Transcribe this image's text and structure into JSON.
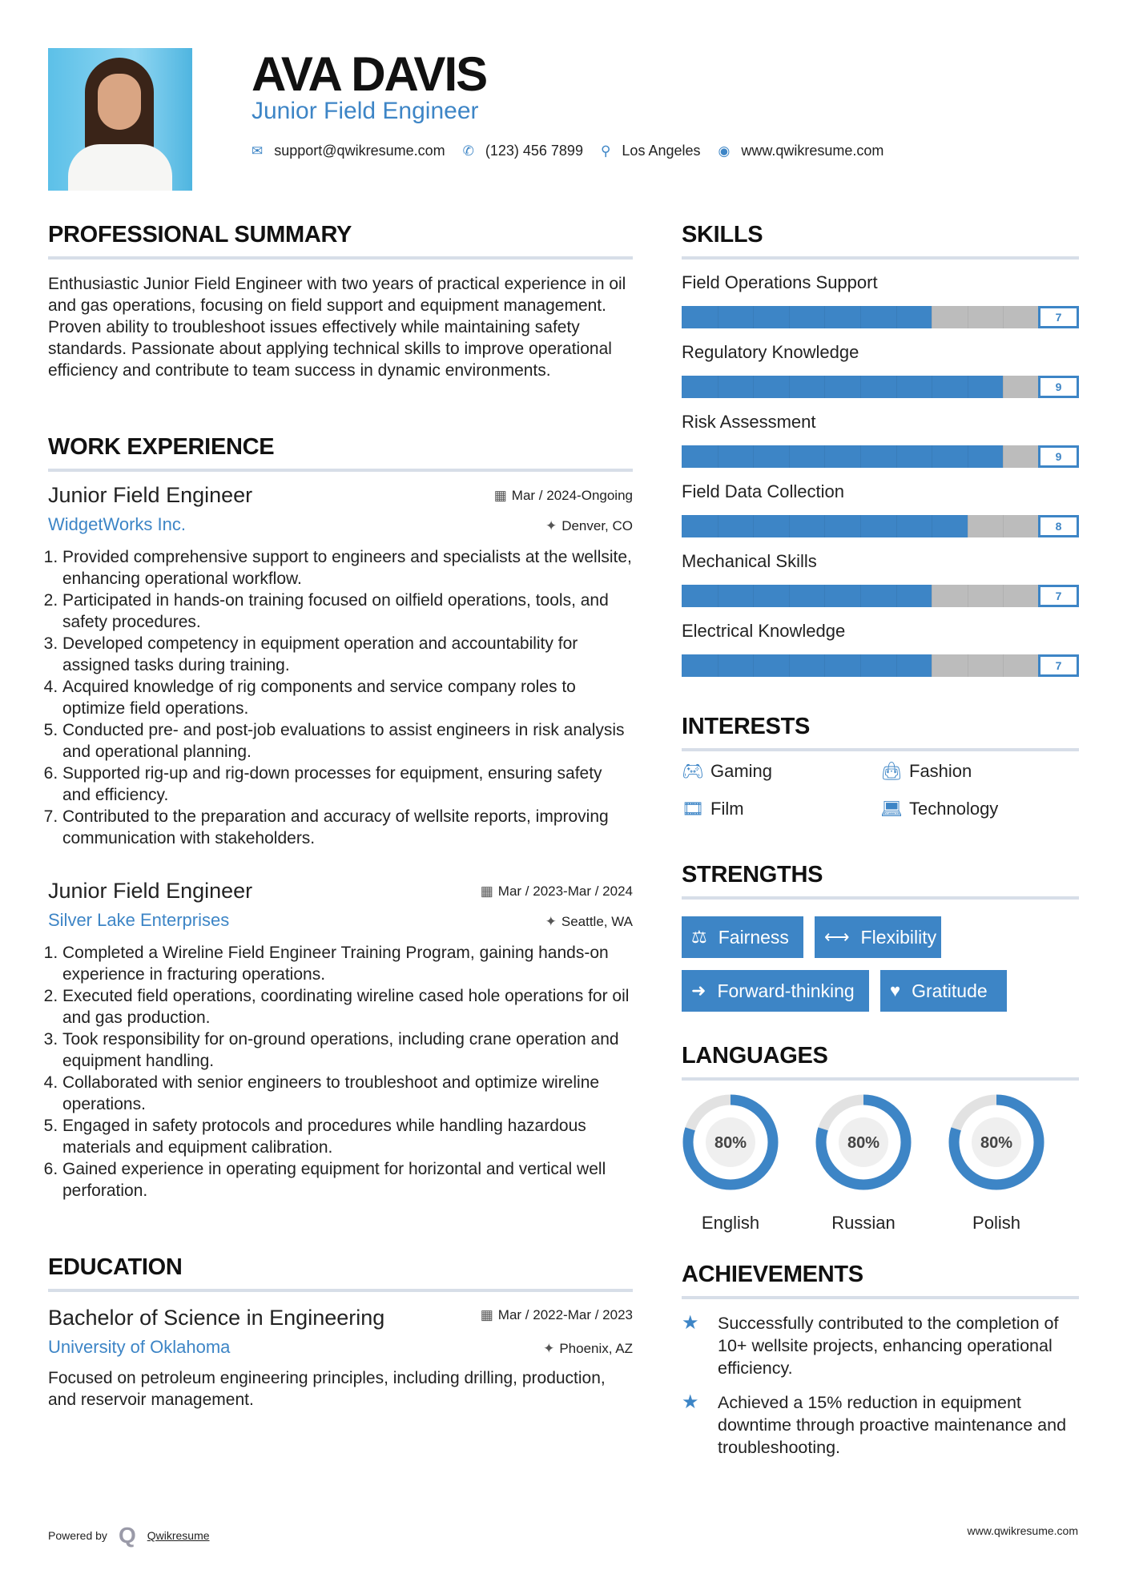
{
  "header": {
    "name": "AVA DAVIS",
    "title": "Junior Field Engineer",
    "contacts": [
      {
        "icon": "envelope-icon",
        "text": "support@qwikresume.com"
      },
      {
        "icon": "phone-icon",
        "text": "(123) 456 7899"
      },
      {
        "icon": "map-marker-icon",
        "text": "Los Angeles"
      },
      {
        "icon": "globe-icon",
        "text": "www.qwikresume.com"
      }
    ]
  },
  "summary": {
    "heading": "PROFESSIONAL SUMMARY",
    "text": "Enthusiastic Junior Field Engineer with two years of practical experience in oil and gas operations, focusing on field support and equipment management. Proven ability to troubleshoot issues effectively while maintaining safety standards. Passionate about applying technical skills to improve operational efficiency and contribute to team success in dynamic environments."
  },
  "experience": {
    "heading": "WORK EXPERIENCE",
    "jobs": [
      {
        "title": "Junior Field Engineer",
        "company": "WidgetWorks Inc.",
        "date": "Mar / 2024-Ongoing",
        "location": "Denver, CO",
        "items": [
          "Provided comprehensive support to engineers and specialists at the wellsite, enhancing operational workflow.",
          "Participated in hands-on training focused on oilfield operations, tools, and safety procedures.",
          "Developed competency in equipment operation and accountability for assigned tasks during training.",
          "Acquired knowledge of rig components and service company roles to optimize field operations.",
          "Conducted pre- and post-job evaluations to assist engineers in risk analysis and operational planning.",
          "Supported rig-up and rig-down processes for equipment, ensuring safety and efficiency.",
          "Contributed to the preparation and accuracy of wellsite reports, improving communication with stakeholders."
        ]
      },
      {
        "title": "Junior Field Engineer",
        "company": "Silver Lake Enterprises",
        "date": "Mar / 2023-Mar / 2024",
        "location": "Seattle, WA",
        "items": [
          "Completed a Wireline Field Engineer Training Program, gaining hands-on experience in fracturing operations.",
          "Executed field operations, coordinating wireline cased hole operations for oil and gas production.",
          "Took responsibility for on-ground operations, including crane operation and equipment handling.",
          "Collaborated with senior engineers to troubleshoot and optimize wireline operations.",
          "Engaged in safety protocols and procedures while handling hazardous materials and equipment calibration.",
          "Gained experience in operating equipment for horizontal and vertical well perforation."
        ]
      }
    ]
  },
  "education": {
    "heading": "EDUCATION",
    "degree": "Bachelor of Science in Engineering",
    "school": "University of Oklahoma",
    "date": "Mar / 2022-Mar / 2023",
    "location": "Phoenix, AZ",
    "text": "Focused on petroleum engineering principles, including drilling, production, and reservoir management."
  },
  "skills": {
    "heading": "SKILLS",
    "max": 10,
    "items": [
      {
        "name": "Field Operations Support",
        "value": 7
      },
      {
        "name": "Regulatory Knowledge",
        "value": 9
      },
      {
        "name": "Risk Assessment",
        "value": 9
      },
      {
        "name": "Field Data Collection",
        "value": 8
      },
      {
        "name": "Mechanical Skills",
        "value": 7
      },
      {
        "name": "Electrical Knowledge",
        "value": 7
      }
    ]
  },
  "interests": {
    "heading": "INTERESTS",
    "items": [
      {
        "icon": "gamepad-icon",
        "label": "Gaming"
      },
      {
        "icon": "shopping-bag-icon",
        "label": "Fashion"
      },
      {
        "icon": "film-icon",
        "label": "Film"
      },
      {
        "icon": "laptop-icon",
        "label": "Technology"
      }
    ]
  },
  "strengths": {
    "heading": "STRENGTHS",
    "items": [
      {
        "icon": "balance-scale-icon",
        "label": "Fairness"
      },
      {
        "icon": "arrows-horizontal-icon",
        "label": "Flexibility"
      },
      {
        "icon": "arrow-right-icon",
        "label": "Forward-thinking"
      },
      {
        "icon": "heart-icon",
        "label": "Gratitude"
      }
    ]
  },
  "languages": {
    "heading": "LANGUAGES",
    "items": [
      {
        "name": "English",
        "percent": 80,
        "label": "80%"
      },
      {
        "name": "Russian",
        "percent": 80,
        "label": "80%"
      },
      {
        "name": "Polish",
        "percent": 80,
        "label": "80%"
      }
    ]
  },
  "achievements": {
    "heading": "ACHIEVEMENTS",
    "items": [
      "Successfully contributed to the completion of 10+ wellsite projects, enhancing operational efficiency.",
      "Achieved a 15% reduction in equipment downtime through proactive maintenance and troubleshooting."
    ]
  },
  "footer": {
    "powered_by": "Powered by",
    "brand": "Qwikresume",
    "website": "www.qwikresume.com"
  },
  "colors": {
    "accent": "#3d85c6",
    "bar_empty": "#bcbcbc",
    "divider": "#d7dee8"
  }
}
